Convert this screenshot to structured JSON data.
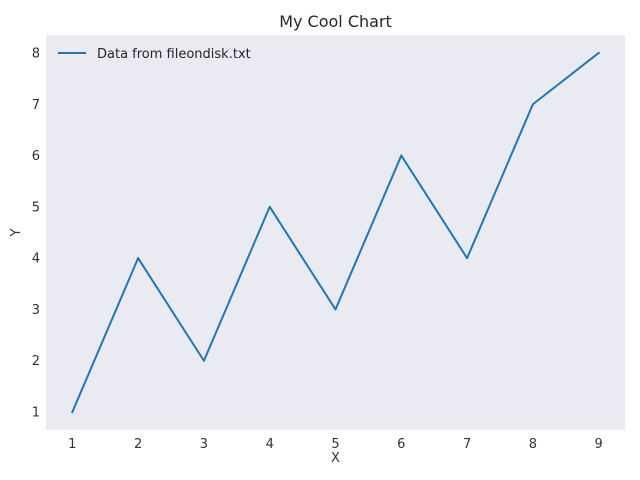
{
  "chart_data": {
    "type": "line",
    "title": "My Cool Chart",
    "xlabel": "X",
    "ylabel": "Y",
    "x": [
      1,
      2,
      3,
      4,
      5,
      6,
      7,
      8,
      9
    ],
    "series": [
      {
        "name": "Data from fileondisk.txt",
        "values": [
          1,
          4,
          2,
          5,
          3,
          6,
          4,
          7,
          8
        ],
        "color": "#1f77b4"
      }
    ],
    "xticks": [
      "1",
      "2",
      "3",
      "4",
      "5",
      "6",
      "7",
      "8",
      "9"
    ],
    "yticks": [
      "1",
      "2",
      "3",
      "4",
      "5",
      "6",
      "7",
      "8"
    ],
    "xlim": [
      0.6,
      9.4
    ],
    "ylim": [
      0.65,
      8.35
    ],
    "grid": false,
    "legend_position": "top-left",
    "background_color": "#eaeaf2"
  }
}
